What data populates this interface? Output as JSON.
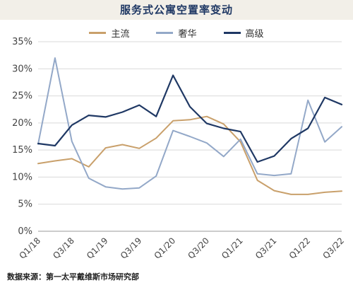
{
  "chart_data": {
    "type": "line",
    "title": "服务式公寓空置率变动",
    "xlabel": "",
    "ylabel": "",
    "ylim": [
      0,
      35
    ],
    "yticks": [
      "0%",
      "5%",
      "10%",
      "15%",
      "20%",
      "25%",
      "30%",
      "35%"
    ],
    "grid": true,
    "legend_position": "top-center",
    "x_tick_labels": [
      "Q1/18",
      "Q3/18",
      "Q1/19",
      "Q3/19",
      "Q1/20",
      "Q3/20",
      "Q1/21",
      "Q3/21",
      "Q1/22",
      "Q3/22"
    ],
    "x": [
      "Q1/18",
      "Q2/18",
      "Q3/18",
      "Q4/18",
      "Q1/19",
      "Q2/19",
      "Q3/19",
      "Q4/19",
      "Q1/20",
      "Q2/20",
      "Q3/20",
      "Q4/20",
      "Q1/21",
      "Q2/21",
      "Q3/21",
      "Q4/21",
      "Q1/22",
      "Q2/22",
      "Q3/22"
    ],
    "series": [
      {
        "name": "主流",
        "color": "#c9a06b",
        "values": [
          12.5,
          13.0,
          13.4,
          11.9,
          15.4,
          16.0,
          15.3,
          17.2,
          20.4,
          20.6,
          21.2,
          19.8,
          16.5,
          9.4,
          7.5,
          6.8,
          6.8,
          7.2,
          7.4
        ]
      },
      {
        "name": "奢华",
        "color": "#93a8c8",
        "values": [
          16.1,
          32.0,
          16.6,
          9.8,
          8.2,
          7.8,
          8.0,
          10.2,
          18.6,
          17.5,
          16.3,
          13.8,
          17.0,
          10.6,
          10.3,
          10.6,
          24.2,
          16.5,
          19.3
        ]
      },
      {
        "name": "高级",
        "color": "#1f3864",
        "values": [
          16.2,
          15.8,
          19.6,
          21.4,
          21.1,
          22.0,
          23.3,
          21.2,
          28.8,
          23.0,
          19.9,
          19.0,
          18.4,
          12.8,
          13.9,
          17.1,
          19.0,
          24.7,
          23.4
        ]
      }
    ]
  },
  "source": "数据来源：第一太平戴维斯市场研究部"
}
